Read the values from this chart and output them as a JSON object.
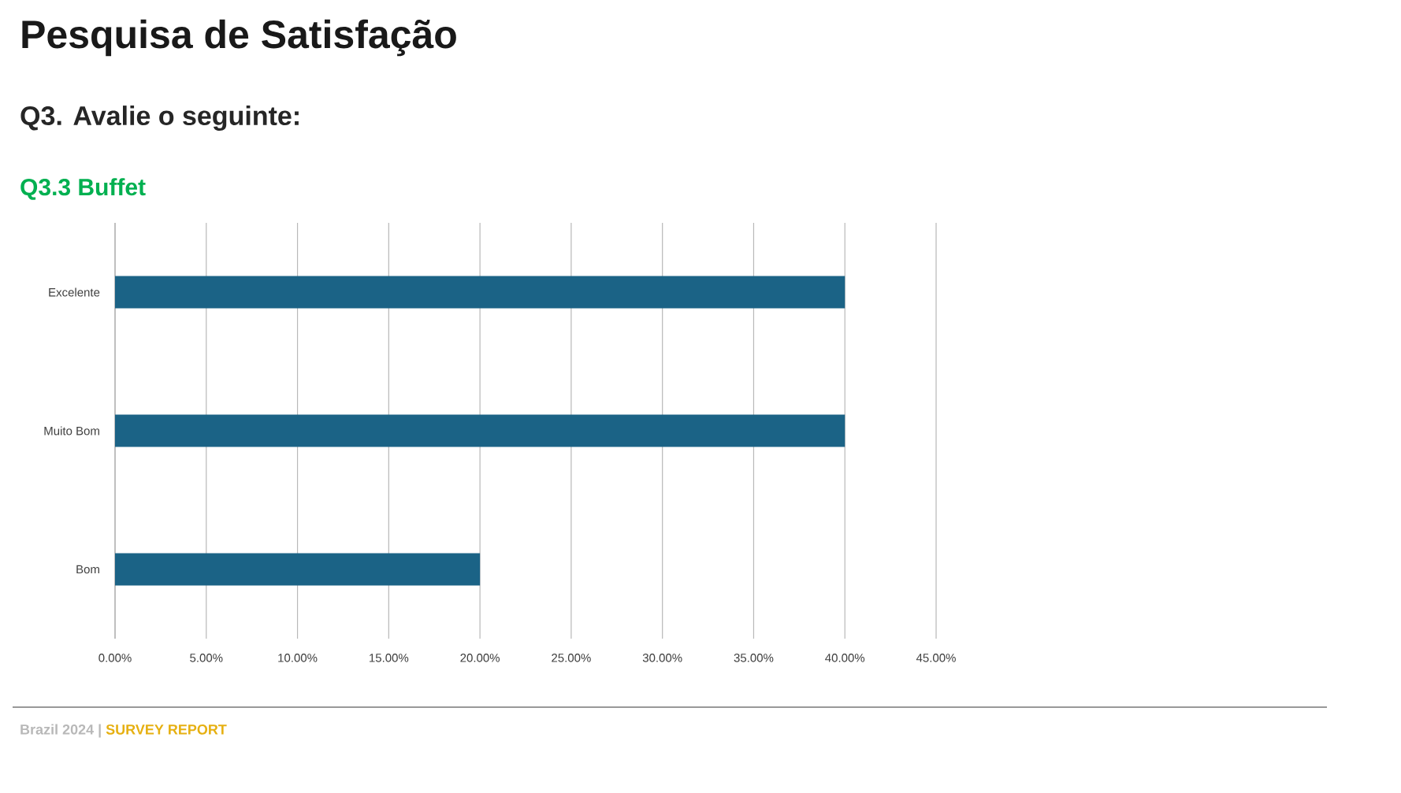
{
  "chart_data": {
    "type": "bar",
    "orientation": "horizontal",
    "title": "Pesquisa de Satisfação",
    "subtitle": "Q3. Avalie o seguinte:",
    "annotations": [
      "Q3.3 Buffet",
      "Brazil 2024 |",
      "SURVEY REPORT"
    ],
    "categories": [
      "Excelente",
      "Muito Bom",
      "Bom"
    ],
    "values": [
      40,
      40,
      20
    ],
    "color": "#1b6386",
    "xlim": [
      0,
      45
    ],
    "xticks": [
      {
        "value": 0,
        "label": "0.00%"
      },
      {
        "value": 5,
        "label": "5.00%"
      },
      {
        "value": 10,
        "label": "10.00%"
      },
      {
        "value": 15,
        "label": "15.00%"
      },
      {
        "value": 20,
        "label": "20.00%"
      },
      {
        "value": 25,
        "label": "25.00%"
      },
      {
        "value": 30,
        "label": "30.00%"
      },
      {
        "value": 35,
        "label": "35.00%"
      },
      {
        "value": 40,
        "label": "40.00%"
      },
      {
        "value": 45,
        "label": "45.00%"
      }
    ],
    "grid": "x"
  }
}
